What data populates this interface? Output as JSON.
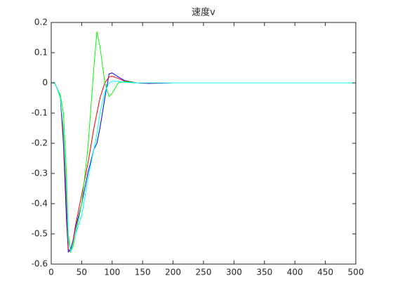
{
  "chart_data": {
    "type": "line",
    "title": "速度v",
    "x": [
      0,
      5,
      10,
      15,
      20,
      25,
      28,
      32,
      36,
      40,
      50,
      60,
      70,
      75,
      80,
      88,
      95,
      100,
      110,
      120,
      140,
      160,
      200,
      300,
      400,
      500
    ],
    "series": [
      {
        "color": "#0000ff",
        "values": [
          0,
          0.002,
          -0.02,
          -0.05,
          -0.2,
          -0.45,
          -0.56,
          -0.55,
          -0.52,
          -0.48,
          -0.4,
          -0.3,
          -0.22,
          -0.2,
          -0.15,
          -0.05,
          0.03,
          0.033,
          0.02,
          0.008,
          0,
          -0.002,
          0,
          0,
          0,
          0
        ]
      },
      {
        "color": "#ff0000",
        "values": [
          0,
          0.002,
          -0.02,
          -0.05,
          -0.18,
          -0.4,
          -0.55,
          -0.56,
          -0.52,
          -0.47,
          -0.37,
          -0.27,
          -0.15,
          -0.1,
          -0.05,
          0,
          0.02,
          0.022,
          0.015,
          0.006,
          0,
          -0.001,
          0,
          0,
          0,
          0
        ]
      },
      {
        "color": "#00ff00",
        "values": [
          0,
          0.002,
          -0.02,
          -0.04,
          -0.1,
          -0.3,
          -0.5,
          -0.56,
          -0.54,
          -0.5,
          -0.4,
          -0.22,
          0.05,
          0.17,
          0.12,
          0,
          -0.045,
          -0.035,
          0,
          0.005,
          0,
          0,
          0,
          0,
          0,
          0
        ]
      },
      {
        "color": "#00ffff",
        "values": [
          0,
          0.002,
          -0.02,
          -0.05,
          -0.15,
          -0.35,
          -0.52,
          -0.56,
          -0.53,
          -0.5,
          -0.44,
          -0.32,
          -0.22,
          -0.17,
          -0.1,
          -0.03,
          0,
          0.005,
          0.005,
          0.002,
          0,
          0,
          0,
          0,
          0,
          0
        ]
      }
    ],
    "xlim": [
      0,
      500
    ],
    "xticks": [
      0,
      50,
      100,
      150,
      200,
      250,
      300,
      350,
      400,
      450,
      500
    ],
    "ylim": [
      -0.6,
      0.2
    ],
    "yticks": [
      -0.6,
      -0.5,
      -0.4,
      -0.3,
      -0.2,
      -0.1,
      0,
      0.1,
      0.2
    ],
    "grid": false
  }
}
